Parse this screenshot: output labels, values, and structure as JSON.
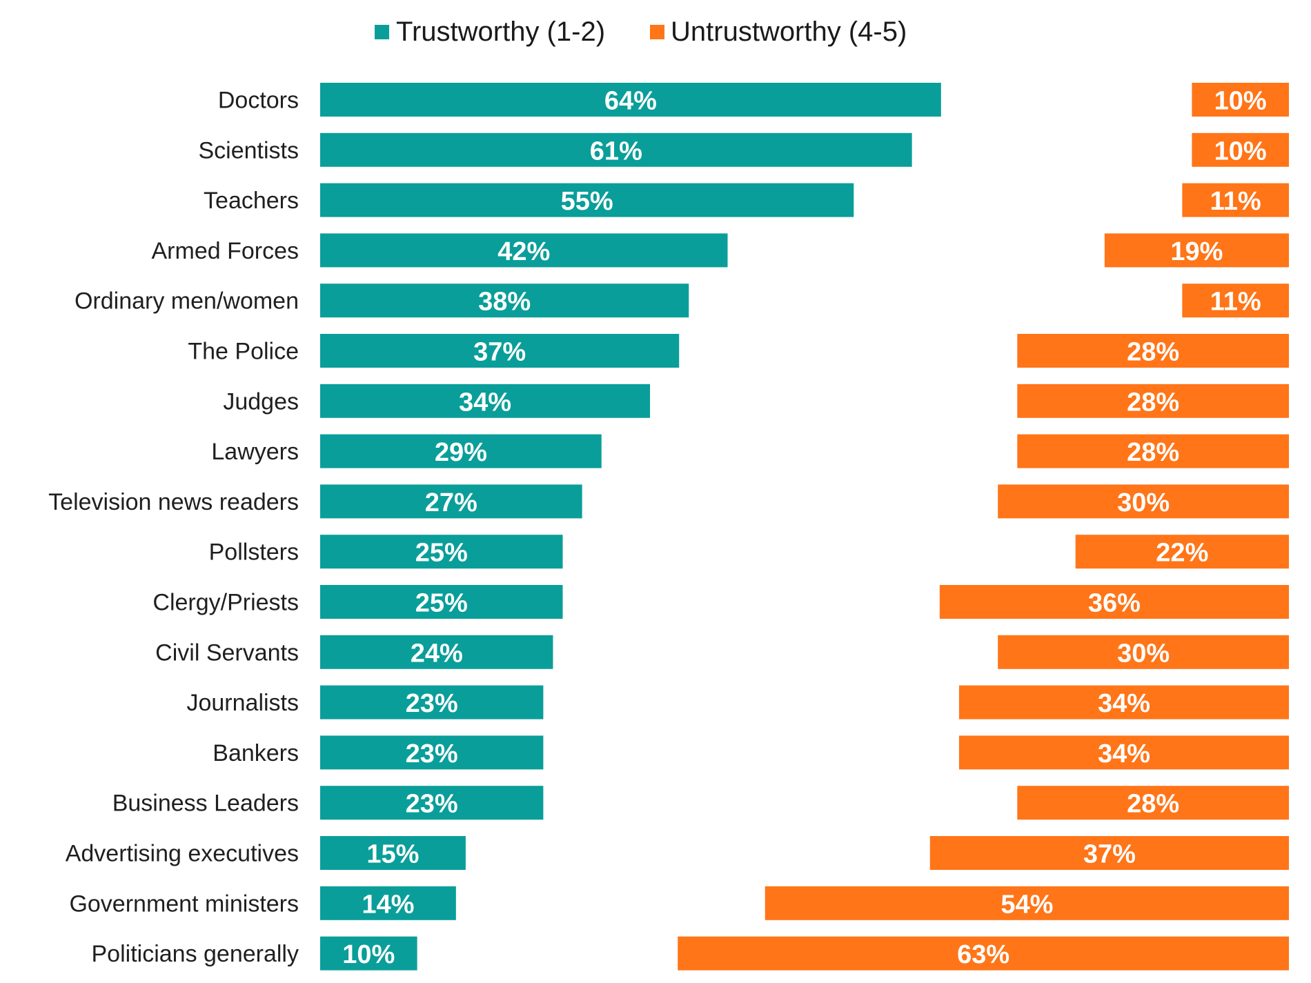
{
  "chart_data": {
    "type": "bar",
    "orientation": "horizontal",
    "title": "",
    "xlabel": "",
    "ylabel": "",
    "grid": false,
    "legend_position": "top-center",
    "xlim": [
      0,
      100
    ],
    "categories": [
      "Doctors",
      "Scientists",
      "Teachers",
      "Armed Forces",
      "Ordinary men/women",
      "The Police",
      "Judges",
      "Lawyers",
      "Television news readers",
      "Pollsters",
      "Clergy/Priests",
      "Civil Servants",
      "Journalists",
      "Bankers",
      "Business Leaders",
      "Advertising executives",
      "Government ministers",
      "Politicians generally"
    ],
    "series": [
      {
        "name": "Trustworthy (1-2)",
        "color": "#0A9E9A",
        "alignment": "left",
        "values": [
          64,
          61,
          55,
          42,
          38,
          37,
          34,
          29,
          27,
          25,
          25,
          24,
          23,
          23,
          23,
          15,
          14,
          10
        ]
      },
      {
        "name": "Untrustworthy (4-5)",
        "color": "#FF7518",
        "alignment": "right",
        "values": [
          10,
          10,
          11,
          19,
          11,
          28,
          28,
          28,
          30,
          22,
          36,
          30,
          34,
          34,
          28,
          37,
          54,
          63
        ]
      }
    ],
    "value_suffix": "%"
  }
}
